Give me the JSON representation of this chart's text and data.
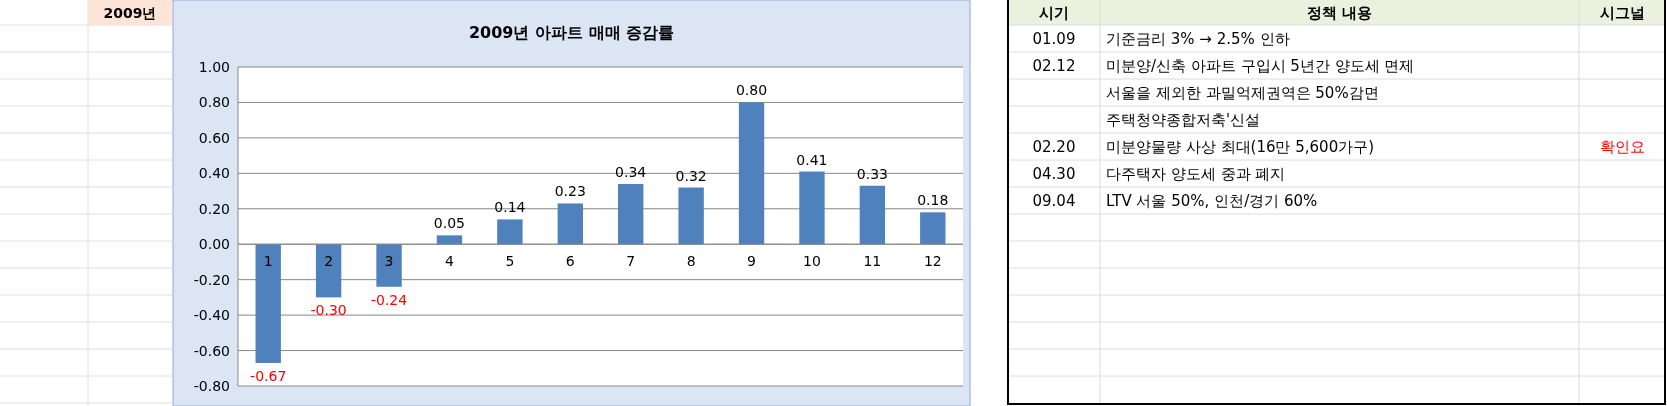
{
  "chart_data": [
    {
      "type": "bar",
      "title": "2009년 아파트 매매 증감률",
      "annotations": [
        "2009년"
      ],
      "categories": [
        "1",
        "2",
        "3",
        "4",
        "5",
        "6",
        "7",
        "8",
        "9",
        "10",
        "11",
        "12"
      ],
      "values": [
        -0.67,
        -0.3,
        -0.24,
        0.05,
        0.14,
        0.23,
        0.34,
        0.32,
        0.8,
        0.41,
        0.33,
        0.18
      ],
      "value_labels": [
        "-0.67",
        "-0.30",
        "-0.24",
        "0.05",
        "0.14",
        "0.23",
        "0.34",
        "0.32",
        "0.80",
        "0.41",
        "0.33",
        "0.18"
      ],
      "color": "#4f81bd",
      "ylim": [
        -0.8,
        1.0
      ],
      "yticks": [
        {
          "value": -0.8,
          "label": "-0.80"
        },
        {
          "value": -0.6,
          "label": "-0.60"
        },
        {
          "value": -0.4,
          "label": "-0.40"
        },
        {
          "value": -0.2,
          "label": "-0.20"
        },
        {
          "value": 0,
          "label": "0.00"
        },
        {
          "value": 0.2,
          "label": "0.20"
        },
        {
          "value": 0.4,
          "label": "0.40"
        },
        {
          "value": 0.6,
          "label": "0.60"
        },
        {
          "value": 0.8,
          "label": "0.80"
        },
        {
          "value": 1.0,
          "label": "1.00"
        }
      ],
      "grid": "y"
    },
    {
      "type": "other",
      "categories": [
        "시기",
        "정책 내용",
        "시그널"
      ],
      "cell_labels": [
        [
          "01.09",
          "기준금리 3% → 2.5% 인하",
          null
        ],
        [
          "02.12",
          "미분양/신축 아파트 구입시 5년간 양도세 면제",
          null
        ],
        [
          null,
          "서울을 제외한 과밀억제권역은 50%감면",
          null
        ],
        [
          null,
          "주택청약종합저축'신설",
          null
        ],
        [
          "02.20",
          "미분양물량 사상 최대(16만 5,600가구)",
          "확인요"
        ],
        [
          "04.30",
          "다주택자 양도세 중과 폐지",
          null
        ],
        [
          "09.04",
          "LTV 서울 50%, 인천/경기 60%",
          null
        ]
      ]
    }
  ]
}
